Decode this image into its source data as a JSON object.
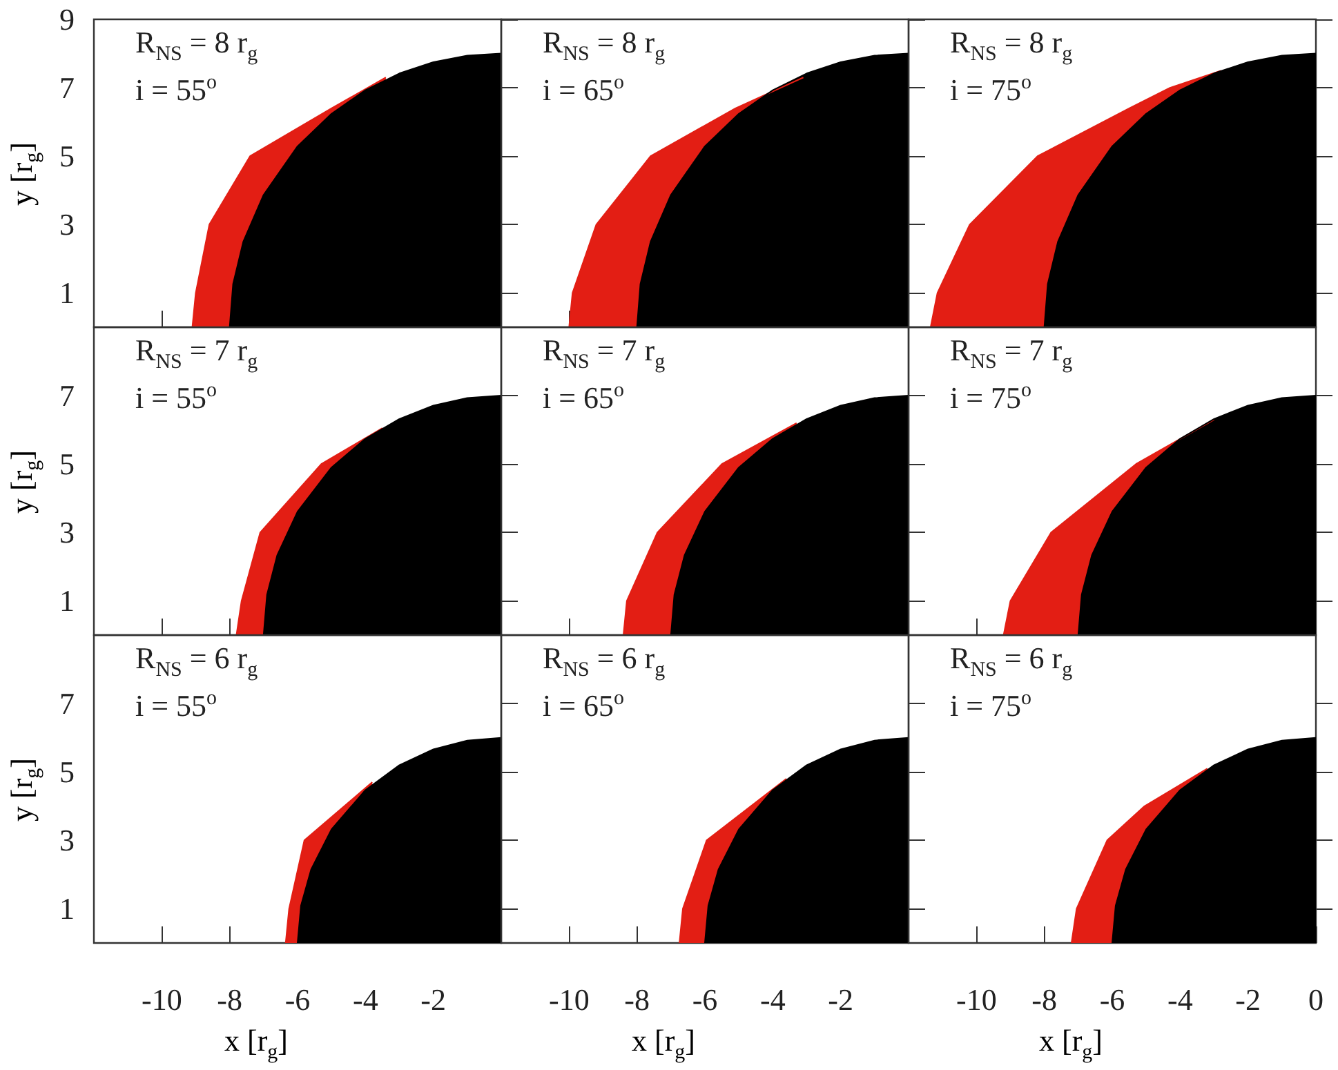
{
  "chart_data": [
    {
      "type": "area",
      "annotations": [
        "R$_{NS}$ = 8 r$_{g}$",
        "i = 55$^{o}$"
      ],
      "ylabel": "y  [r$_{g}$]",
      "xlim": [
        -12,
        0
      ],
      "xticks": [
        -10,
        -8,
        -6,
        -4,
        -2
      ],
      "ylim": [
        0,
        9
      ],
      "yticks": [
        1,
        3,
        5,
        7,
        9
      ],
      "tick_labels": "y",
      "series": [
        {
          "color": "#e31e14",
          "x": [
            -9.1,
            -9.0,
            -8.6,
            -7.4,
            -5.0,
            -3.4
          ],
          "values": [
            0,
            1,
            3,
            5,
            6.4,
            7.3
          ]
        },
        {
          "color": "#000000",
          "x": [
            -8,
            -7.9,
            -7.6,
            -7,
            -6,
            -5,
            -4,
            -3,
            -2,
            -1,
            0
          ],
          "values": [
            0,
            1.26,
            2.5,
            3.87,
            5.29,
            6.24,
            6.93,
            7.42,
            7.75,
            7.94,
            8
          ]
        }
      ]
    },
    {
      "type": "area",
      "annotations": [
        "R$_{NS}$ = 8 r$_{g}$",
        "i = 65$^{o}$"
      ],
      "xlim": [
        -12,
        0
      ],
      "xticks": [
        -10,
        -8,
        -6,
        -4,
        -2
      ],
      "ylim": [
        0,
        9
      ],
      "yticks": [
        1,
        3,
        5,
        7,
        9
      ],
      "tick_labels": false,
      "series": [
        {
          "color": "#e31e14",
          "x": [
            -10.0,
            -9.9,
            -9.2,
            -7.6,
            -5.1,
            -3.1
          ],
          "values": [
            0,
            1,
            3,
            5,
            6.4,
            7.3
          ]
        },
        {
          "color": "#000000",
          "x": [
            -8,
            -7.9,
            -7.6,
            -7,
            -6,
            -5,
            -4,
            -3,
            -2,
            -1,
            0
          ],
          "values": [
            0,
            1.26,
            2.5,
            3.87,
            5.29,
            6.24,
            6.93,
            7.42,
            7.75,
            7.94,
            8
          ]
        }
      ]
    },
    {
      "type": "area",
      "annotations": [
        "R$_{NS}$ = 8 r$_{g}$",
        "i = 75$^{o}$"
      ],
      "xlim": [
        -12,
        0
      ],
      "xticks": [
        -10,
        -8,
        -6,
        -4,
        -2
      ],
      "ylim": [
        0,
        9
      ],
      "yticks": [
        1,
        3,
        5,
        7,
        9
      ],
      "tick_labels": false,
      "series": [
        {
          "color": "#e31e14",
          "x": [
            -11.35,
            -11.15,
            -10.2,
            -8.2,
            -5.5,
            -4.3,
            -2.8
          ],
          "values": [
            0,
            1,
            3,
            5,
            6.4,
            7,
            7.5
          ]
        },
        {
          "color": "#000000",
          "x": [
            -8,
            -7.9,
            -7.6,
            -7,
            -6,
            -5,
            -4,
            -3,
            -2,
            -1,
            0
          ],
          "values": [
            0,
            1.26,
            2.5,
            3.87,
            5.29,
            6.24,
            6.93,
            7.42,
            7.75,
            7.94,
            8
          ]
        }
      ]
    },
    {
      "type": "area",
      "annotations": [
        "R$_{NS}$ = 7 r$_{g}$",
        "i = 55$^{o}$"
      ],
      "ylabel": "y  [r$_{g}$]",
      "xlim": [
        -12,
        0
      ],
      "xticks": [
        -10,
        -8,
        -6,
        -4,
        -2
      ],
      "ylim": [
        0,
        9
      ],
      "yticks": [
        1,
        3,
        5,
        7
      ],
      "tick_labels": "y",
      "series": [
        {
          "color": "#e31e14",
          "x": [
            -7.8,
            -7.65,
            -7.1,
            -5.3,
            -3.5
          ],
          "values": [
            0,
            1,
            3,
            5,
            6.05
          ]
        },
        {
          "color": "#000000",
          "x": [
            -7,
            -6.9,
            -6.6,
            -6,
            -5,
            -4,
            -3,
            -2,
            -1,
            0
          ],
          "values": [
            0,
            1.18,
            2.33,
            3.61,
            4.9,
            5.74,
            6.32,
            6.71,
            6.93,
            7
          ]
        }
      ]
    },
    {
      "type": "area",
      "annotations": [
        "R$_{NS}$ = 7 r$_{g}$",
        "i = 65$^{o}$"
      ],
      "xlim": [
        -12,
        0
      ],
      "xticks": [
        -10,
        -8,
        -6,
        -4,
        -2
      ],
      "ylim": [
        0,
        9
      ],
      "yticks": [
        1,
        3,
        5,
        7
      ],
      "tick_labels": false,
      "series": [
        {
          "color": "#e31e14",
          "x": [
            -8.4,
            -8.3,
            -7.4,
            -5.5,
            -3.3
          ],
          "values": [
            0,
            1,
            3,
            5,
            6.2
          ]
        },
        {
          "color": "#000000",
          "x": [
            -7,
            -6.9,
            -6.6,
            -6,
            -5,
            -4,
            -3,
            -2,
            -1,
            0
          ],
          "values": [
            0,
            1.18,
            2.33,
            3.61,
            4.9,
            5.74,
            6.32,
            6.71,
            6.93,
            7
          ]
        }
      ]
    },
    {
      "type": "area",
      "annotations": [
        "R$_{NS}$ = 7 r$_{g}$",
        "i = 75$^{o}$"
      ],
      "xlim": [
        -12,
        0
      ],
      "xticks": [
        -10,
        -8,
        -6,
        -4,
        -2
      ],
      "ylim": [
        0,
        9
      ],
      "yticks": [
        1,
        3,
        5,
        7
      ],
      "tick_labels": false,
      "series": [
        {
          "color": "#e31e14",
          "x": [
            -9.2,
            -9.0,
            -7.8,
            -5.3,
            -3.0
          ],
          "values": [
            0,
            1,
            3,
            5,
            6.3
          ]
        },
        {
          "color": "#000000",
          "x": [
            -7,
            -6.9,
            -6.6,
            -6,
            -5,
            -4,
            -3,
            -2,
            -1,
            0
          ],
          "values": [
            0,
            1.18,
            2.33,
            3.61,
            4.9,
            5.74,
            6.32,
            6.71,
            6.93,
            7
          ]
        }
      ]
    },
    {
      "type": "area",
      "annotations": [
        "R$_{NS}$ = 6 r$_{g}$",
        "i = 55$^{o}$"
      ],
      "xlabel": "x  [r$_{g}$]",
      "ylabel": "y  [r$_{g}$]",
      "xlim": [
        -12,
        0
      ],
      "xticks": [
        -10,
        -8,
        -6,
        -4,
        -2
      ],
      "ylim": [
        0,
        9
      ],
      "yticks": [
        1,
        3,
        5,
        7
      ],
      "series": [
        {
          "color": "#e31e14",
          "x": [
            -6.35,
            -6.25,
            -5.8,
            -3.8
          ],
          "values": [
            0,
            1,
            3,
            4.7
          ]
        },
        {
          "color": "#000000",
          "x": [
            -6,
            -5.9,
            -5.6,
            -5,
            -4,
            -3,
            -2,
            -1,
            0
          ],
          "values": [
            0,
            1.09,
            2.15,
            3.32,
            4.47,
            5.2,
            5.66,
            5.92,
            6
          ]
        }
      ]
    },
    {
      "type": "area",
      "annotations": [
        "R$_{NS}$ = 6 r$_{g}$",
        "i = 65$^{o}$"
      ],
      "xlabel": "x  [r$_{g}$]",
      "xlim": [
        -12,
        0
      ],
      "xticks": [
        -10,
        -8,
        -6,
        -4,
        -2
      ],
      "ylim": [
        0,
        9
      ],
      "yticks": [
        1,
        3,
        5,
        7
      ],
      "tick_labels": "x",
      "series": [
        {
          "color": "#e31e14",
          "x": [
            -6.75,
            -6.65,
            -5.95,
            -3.6
          ],
          "values": [
            0,
            1,
            3,
            4.8
          ]
        },
        {
          "color": "#000000",
          "x": [
            -6,
            -5.9,
            -5.6,
            -5,
            -4,
            -3,
            -2,
            -1,
            0
          ],
          "values": [
            0,
            1.09,
            2.15,
            3.32,
            4.47,
            5.2,
            5.66,
            5.92,
            6
          ]
        }
      ]
    },
    {
      "type": "area",
      "annotations": [
        "R$_{NS}$ = 6 r$_{g}$",
        "i = 75$^{o}$"
      ],
      "xlabel": "x  [r$_{g}$]",
      "xlim": [
        -12,
        0
      ],
      "xticks": [
        -10,
        -8,
        -6,
        -4,
        -2,
        0
      ],
      "ylim": [
        0,
        9
      ],
      "yticks": [
        1,
        3,
        5,
        7
      ],
      "tick_labels": "x",
      "series": [
        {
          "color": "#e31e14",
          "x": [
            -7.2,
            -7.05,
            -6.15,
            -5.05,
            -3.2
          ],
          "values": [
            0,
            1,
            3,
            4,
            5.1
          ]
        },
        {
          "color": "#000000",
          "x": [
            -6,
            -5.9,
            -5.6,
            -5,
            -4,
            -3,
            -2,
            -1,
            0
          ],
          "values": [
            0,
            1.09,
            2.15,
            3.32,
            4.47,
            5.2,
            5.66,
            5.92,
            6
          ]
        }
      ]
    }
  ]
}
